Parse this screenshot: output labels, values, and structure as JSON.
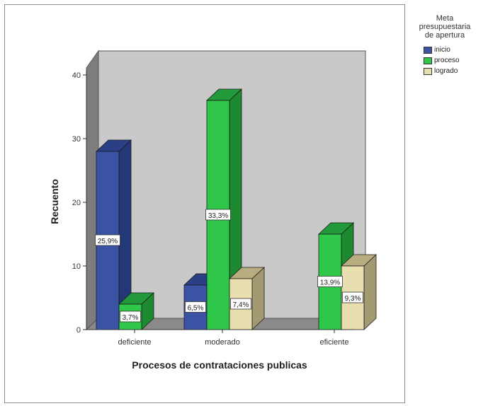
{
  "chart_data": {
    "type": "bar",
    "style": "3d-clustered",
    "categories": [
      "deficiente",
      "moderado",
      "eficiente"
    ],
    "series": [
      {
        "name": "inicio",
        "values": [
          28,
          7,
          0
        ],
        "labels": [
          "25,9%",
          "6,5%",
          ""
        ]
      },
      {
        "name": "proceso",
        "values": [
          4,
          36,
          15
        ],
        "labels": [
          "3,7%",
          "33,3%",
          "13,9%"
        ]
      },
      {
        "name": "logrado",
        "values": [
          0,
          8,
          10
        ],
        "labels": [
          "",
          "7,4%",
          "9,3%"
        ]
      }
    ],
    "xlabel": "Procesos de contrataciones publicas",
    "ylabel": "Recuento",
    "ylim": [
      0,
      40
    ],
    "yticks": [
      0,
      10,
      20,
      30,
      40
    ],
    "grid": false,
    "legend_title": "Meta\npresupuestaria\nde apertura",
    "legend_position": "top-right outside"
  },
  "colors": {
    "inicio": {
      "front": "#3a53a4",
      "side": "#243877",
      "top": "#2a3f85"
    },
    "proceso": {
      "front": "#2ec74a",
      "side": "#1e8a30",
      "top": "#22993a"
    },
    "logrado": {
      "front": "#e9deb0",
      "side": "#a39a72",
      "top": "#b8ad80"
    },
    "back_wall": "#c9c9c9",
    "side_wall": "#7d7d7d",
    "floor": "#8a8a8a",
    "text": "#222222"
  }
}
